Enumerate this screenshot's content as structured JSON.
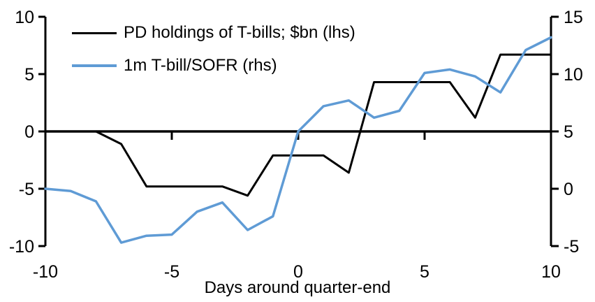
{
  "chart_data": {
    "type": "line",
    "title": "",
    "xlabel": "Days around quarter-end",
    "grid": false,
    "legend_position": "top-left",
    "x": [
      -10,
      -9,
      -8,
      -7,
      -6,
      -5,
      -4,
      -3,
      -2,
      -1,
      0,
      1,
      2,
      3,
      4,
      5,
      6,
      7,
      8,
      9,
      10
    ],
    "x_axis": {
      "range": [
        -10,
        10
      ],
      "tick_labels": [
        -10,
        -5,
        0,
        5,
        10
      ],
      "tick_marks": [
        -5,
        0,
        5
      ]
    },
    "left_axis": {
      "range": [
        -10,
        10
      ],
      "ticks": [
        10,
        5,
        0,
        -5,
        -10
      ]
    },
    "right_axis": {
      "range": [
        -5,
        15
      ],
      "ticks": [
        15,
        10,
        5,
        0,
        -5
      ]
    },
    "series": [
      {
        "name": "PD holdings of T-bills; $bn (lhs)",
        "axis": "left",
        "color": "#000000",
        "stroke_width": 3,
        "values": [
          null,
          null,
          0,
          -1.1,
          -4.8,
          -4.8,
          -4.8,
          -4.8,
          -5.6,
          -2.1,
          -2.1,
          -2.1,
          -3.6,
          4.3,
          4.3,
          4.3,
          4.3,
          1.2,
          6.7,
          6.7,
          6.7
        ]
      },
      {
        "name": "1m T-bill/SOFR (rhs)",
        "axis": "right",
        "color": "#5F9BD5",
        "stroke_width": 3.5,
        "values": [
          0,
          -0.2,
          -1.1,
          -4.7,
          -4.1,
          -4.0,
          -2.0,
          -1.2,
          -3.6,
          -2.4,
          5.0,
          7.2,
          7.7,
          6.2,
          6.8,
          10.1,
          10.4,
          9.8,
          8.4,
          12.1,
          13.2
        ]
      }
    ],
    "axis_color": "#000000"
  }
}
